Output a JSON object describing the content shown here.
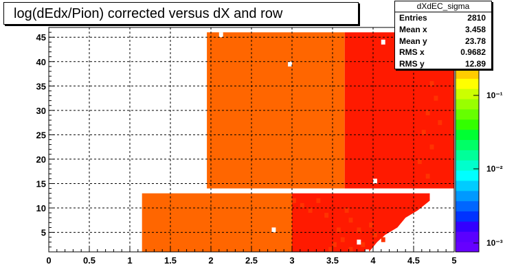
{
  "chart_data": {
    "type": "heatmap",
    "title": "log(dEdx/Pion) corrected versus dX and row",
    "xlim": [
      0,
      5
    ],
    "ylim": [
      1,
      47
    ],
    "x_ticks": [
      "0",
      "0.5",
      "1",
      "1.5",
      "2",
      "2.5",
      "3",
      "3.5",
      "4",
      "4.5",
      "5"
    ],
    "y_ticks": [
      "5",
      "10",
      "15",
      "20",
      "25",
      "30",
      "35",
      "40",
      "45"
    ],
    "grid": true,
    "colorbar": {
      "scale": "log",
      "labels": [
        "10⁻¹",
        "10⁻²",
        "10⁻³"
      ]
    },
    "regions": [
      {
        "x": [
          1.95,
          3.65
        ],
        "y": [
          14,
          46
        ],
        "level": "orange"
      },
      {
        "x": [
          3.65,
          5.0
        ],
        "y": [
          14,
          46
        ],
        "level": "red"
      },
      {
        "x": [
          1.15,
          3.0
        ],
        "y": [
          1,
          13
        ],
        "level": "orange"
      },
      {
        "x": [
          3.0,
          4.7
        ],
        "y": [
          1,
          13
        ],
        "level": "red"
      }
    ]
  },
  "stats": {
    "name": "dXdEC_sigma",
    "rows": [
      {
        "label": "Entries",
        "value": "2810"
      },
      {
        "label": "Mean x",
        "value": "3.458"
      },
      {
        "label": "Mean y",
        "value": "23.78"
      },
      {
        "label": "RMS x",
        "value": "0.9682"
      },
      {
        "label": "RMS y",
        "value": "12.89"
      }
    ]
  },
  "colors": {
    "orange": "#ff6600",
    "red": "#ff1a00",
    "grid": "#000000"
  }
}
